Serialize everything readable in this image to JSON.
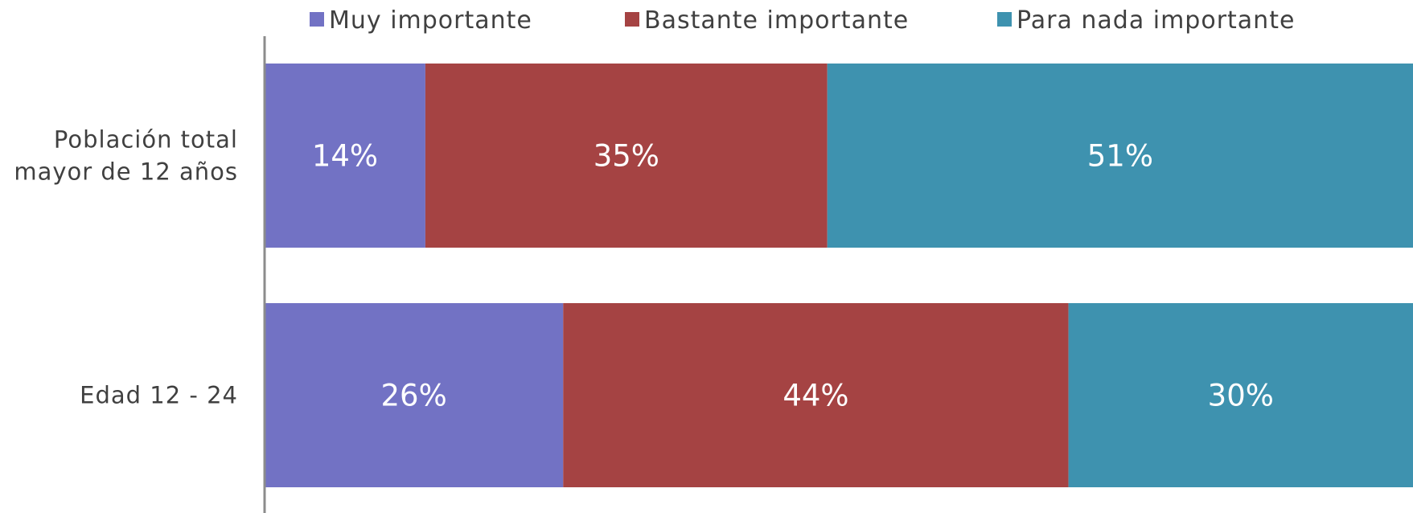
{
  "chart_data": {
    "type": "bar",
    "orientation": "horizontal",
    "stacked": true,
    "percent_stacked": true,
    "categories": [
      [
        "Población total",
        "mayor de 12 años"
      ],
      [
        "Edad 12 - 24"
      ]
    ],
    "series": [
      {
        "name": "Muy importante",
        "color": "#7272C4",
        "values": [
          14,
          26
        ],
        "labels": [
          "14%",
          "26%"
        ]
      },
      {
        "name": "Bastante importante",
        "color": "#A54343",
        "values": [
          35,
          44
        ],
        "labels": [
          "35%",
          "44%"
        ]
      },
      {
        "name": "Para nada importante",
        "color": "#3E92AF",
        "values": [
          51,
          30
        ],
        "labels": [
          "51%",
          "30%"
        ]
      }
    ],
    "xlim": [
      0,
      100
    ],
    "axis_color": "#8c8c8c",
    "legend": "top",
    "grid": false
  }
}
